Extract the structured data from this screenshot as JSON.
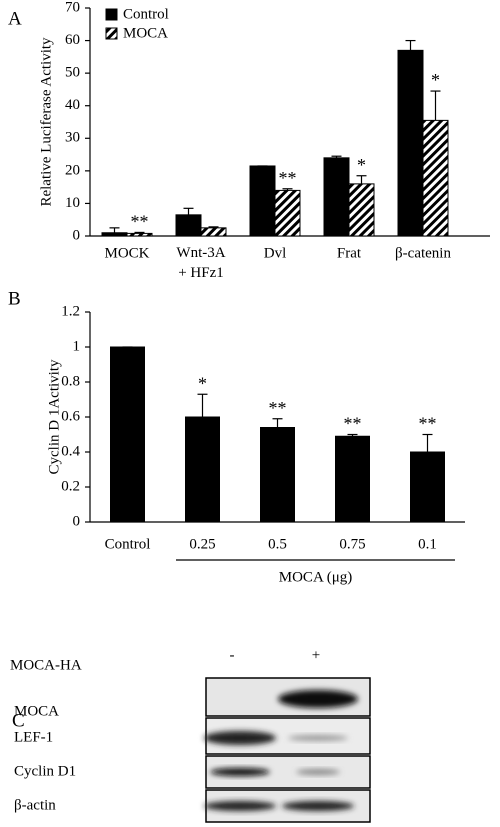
{
  "chart_data": [
    {
      "type": "bar",
      "panel": "A",
      "ylabel": "Relative Luciferase Activity",
      "categories": [
        "MOCK",
        "Wnt-3A\n+ HFz1",
        "Dvl",
        "Frat",
        "β-catenin"
      ],
      "series": [
        {
          "name": "Control",
          "color": "#000000",
          "values": [
            1,
            6.5,
            21.5,
            24,
            57
          ],
          "errors": [
            1.5,
            2,
            0,
            0.5,
            3
          ]
        },
        {
          "name": "MOCA",
          "color": "#000000",
          "hatch": true,
          "values": [
            0.8,
            2.5,
            14,
            16,
            35.5
          ],
          "errors": [
            0.3,
            0.3,
            0.5,
            2.5,
            9
          ],
          "annotations": [
            "**",
            null,
            "**",
            "*",
            "*"
          ]
        }
      ],
      "ylim": [
        0,
        70
      ],
      "yticks": [
        0,
        10,
        20,
        30,
        40,
        50,
        60,
        70
      ],
      "legend": "upper left"
    },
    {
      "type": "bar",
      "panel": "B",
      "ylabel": "Cyclin D 1Activity",
      "categories": [
        "Control",
        "0.25",
        "0.5",
        "0.75",
        "0.1"
      ],
      "values": [
        1,
        0.6,
        0.54,
        0.49,
        0.4
      ],
      "errors": [
        0,
        0.13,
        0.05,
        0.01,
        0.1
      ],
      "annotations": [
        null,
        "*",
        "**",
        "**",
        "**"
      ],
      "color": "#000000",
      "x_group_label": "MOCA (μg)",
      "ylim": [
        0,
        1.2
      ],
      "yticks": [
        0,
        0.2,
        0.4,
        0.6,
        0.8,
        1,
        1.2
      ]
    }
  ],
  "blot": {
    "panel": "C",
    "label": "MOCA-HA",
    "lanes": [
      "-",
      "+"
    ],
    "rows": [
      "MOCA",
      "LEF-1",
      "Cyclin D1",
      "β-actin"
    ]
  }
}
